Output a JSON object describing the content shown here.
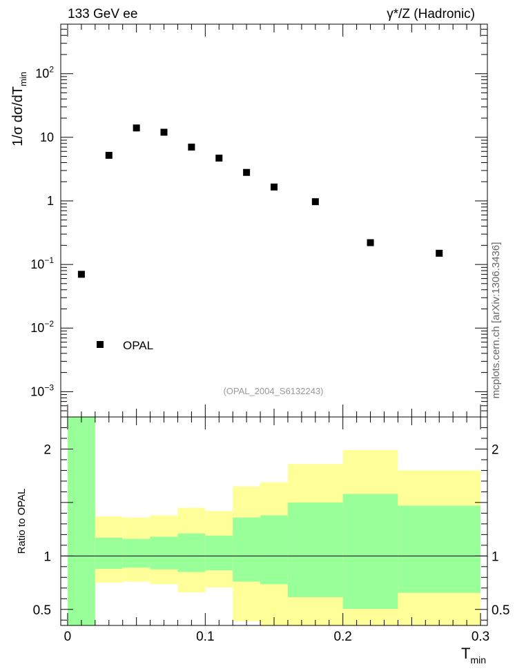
{
  "chart_data": [
    {
      "type": "scatter",
      "top_left_label": "133 GeV ee",
      "top_right_label": "γ*/Z (Hadronic)",
      "ylabel": "1/σ dσ/dT",
      "ylabel_sub": "min",
      "yscale": "log",
      "ylim": [
        0.0004,
        600
      ],
      "xlim": [
        -0.005,
        0.305
      ],
      "ytick_labels": [
        {
          "value": 0.001,
          "base": "10",
          "exp": "−3"
        },
        {
          "value": 0.01,
          "base": "10",
          "exp": "−2"
        },
        {
          "value": 0.1,
          "base": "10",
          "exp": "−1"
        },
        {
          "value": 1,
          "base": "1",
          "exp": ""
        },
        {
          "value": 10,
          "base": "10",
          "exp": ""
        },
        {
          "value": 100,
          "base": "10",
          "exp": "2"
        }
      ],
      "series": [
        {
          "name": "OPAL",
          "marker": "square",
          "color": "#000000",
          "x": [
            0.01,
            0.03,
            0.05,
            0.07,
            0.09,
            0.11,
            0.13,
            0.15,
            0.18,
            0.22,
            0.27
          ],
          "y": [
            0.07,
            5.2,
            14.0,
            12.0,
            7.0,
            4.7,
            2.8,
            1.65,
            0.97,
            0.22,
            0.15
          ]
        }
      ],
      "legend": {
        "entry": "OPAL",
        "placement": "bottom-left"
      },
      "annotation": "(OPAL_2004_S6132243)",
      "side_label": "mcplots.cern.ch [arXiv:1306.3436]"
    },
    {
      "type": "area",
      "ylabel": "Ratio to OPAL",
      "xlabel": "T",
      "xlabel_sub": "min",
      "ylim": [
        0.35,
        2.3
      ],
      "xlim": [
        -0.005,
        0.305
      ],
      "yticks": [
        0.5,
        1,
        2
      ],
      "ytick_labels": [
        "0.5",
        "1",
        "2"
      ],
      "xticks": [
        0,
        0.1,
        0.2,
        0.3
      ],
      "xtick_labels": [
        "0",
        "0.1",
        "0.2",
        "0.3"
      ],
      "reference_line": 1,
      "bins": [
        {
          "lo": 0.0,
          "hi": 0.02,
          "green": [
            0.35,
            2.3
          ],
          "yellow": [
            0.35,
            2.3
          ]
        },
        {
          "lo": 0.02,
          "hi": 0.04,
          "green": [
            0.88,
            1.17
          ],
          "yellow": [
            0.75,
            1.37
          ]
        },
        {
          "lo": 0.04,
          "hi": 0.06,
          "green": [
            0.89,
            1.16
          ],
          "yellow": [
            0.76,
            1.36
          ]
        },
        {
          "lo": 0.06,
          "hi": 0.08,
          "green": [
            0.875,
            1.18
          ],
          "yellow": [
            0.735,
            1.38
          ]
        },
        {
          "lo": 0.08,
          "hi": 0.1,
          "green": [
            0.85,
            1.21
          ],
          "yellow": [
            0.66,
            1.45
          ]
        },
        {
          "lo": 0.1,
          "hi": 0.12,
          "green": [
            0.865,
            1.19
          ],
          "yellow": [
            0.705,
            1.42
          ]
        },
        {
          "lo": 0.12,
          "hi": 0.14,
          "green": [
            0.76,
            1.36
          ],
          "yellow": [
            0.39,
            1.65
          ]
        },
        {
          "lo": 0.14,
          "hi": 0.16,
          "green": [
            0.735,
            1.38
          ],
          "yellow": [
            0.35,
            1.69
          ]
        },
        {
          "lo": 0.16,
          "hi": 0.2,
          "green": [
            0.615,
            1.5
          ],
          "yellow": [
            0.35,
            1.86
          ]
        },
        {
          "lo": 0.2,
          "hi": 0.24,
          "green": [
            0.505,
            1.58
          ],
          "yellow": [
            0.35,
            1.99
          ]
        },
        {
          "lo": 0.24,
          "hi": 0.3,
          "green": [
            0.655,
            1.47
          ],
          "yellow": [
            0.35,
            1.8
          ]
        }
      ],
      "colors": {
        "green": "#99ff99",
        "yellow": "#ffff99",
        "line": "#000000"
      }
    }
  ]
}
